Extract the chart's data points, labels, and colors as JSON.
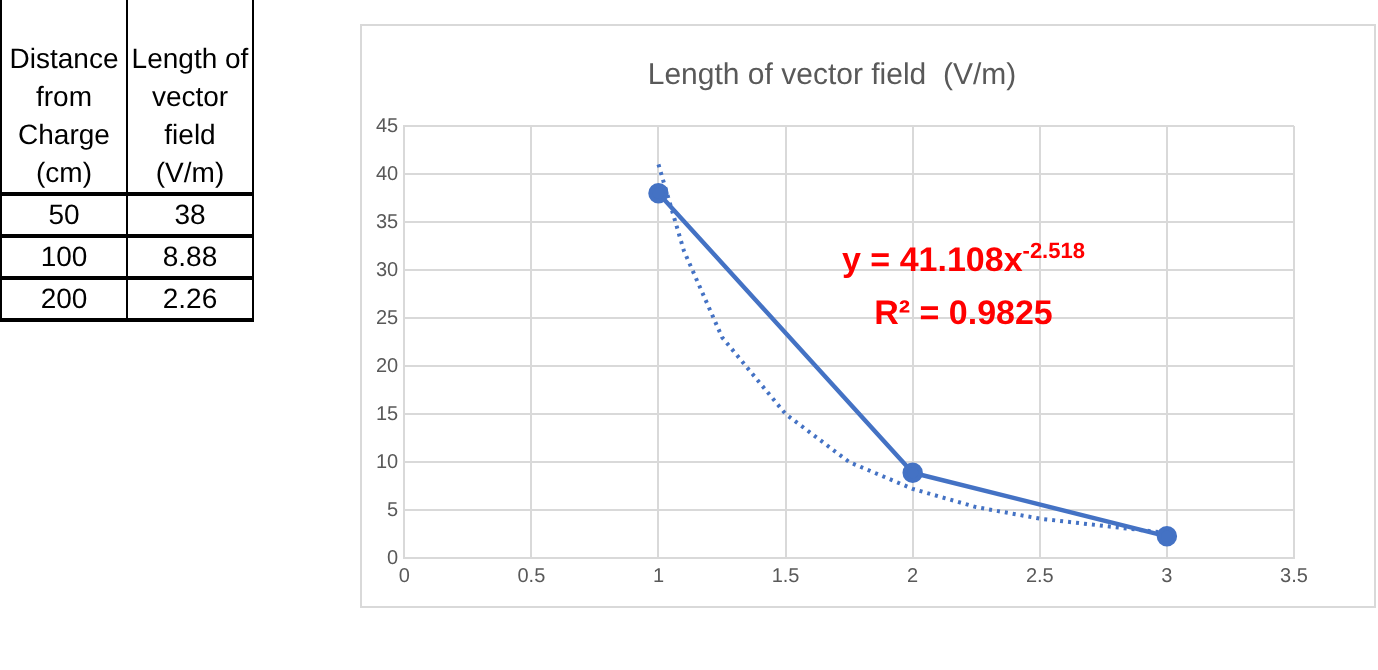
{
  "chart_data": {
    "type": "line",
    "title": "Length of vector field  (V/m)",
    "xlim": [
      0,
      3.5
    ],
    "xticks": [
      0,
      0.5,
      1,
      1.5,
      2,
      2.5,
      3,
      3.5
    ],
    "ylim": [
      0,
      45
    ],
    "yticks": [
      0,
      5,
      10,
      15,
      20,
      25,
      30,
      35,
      40,
      45
    ],
    "grid": true,
    "legend": false,
    "marker": "circle",
    "series": [
      {
        "color": "#4472c4",
        "x": [
          1,
          2,
          3
        ],
        "values": [
          38,
          8.88,
          2.26
        ]
      },
      {
        "color": "#4472c4",
        "marker": "none",
        "line_style": "dotted",
        "x": [
          1,
          1.1,
          1.25,
          1.5,
          1.75,
          2,
          2.25,
          2.5,
          3
        ],
        "values": [
          41,
          32,
          23,
          15,
          10,
          7.2,
          5.3,
          4.1,
          2.6
        ]
      }
    ],
    "annotations": [
      "Distance from Charge (cm)",
      "Length of vector field (V/m)",
      "50",
      "38",
      "100",
      "8.88",
      "200",
      "2.26",
      "y = 41.108x$^{-2.518}$",
      "R² = 0.9825"
    ]
  }
}
